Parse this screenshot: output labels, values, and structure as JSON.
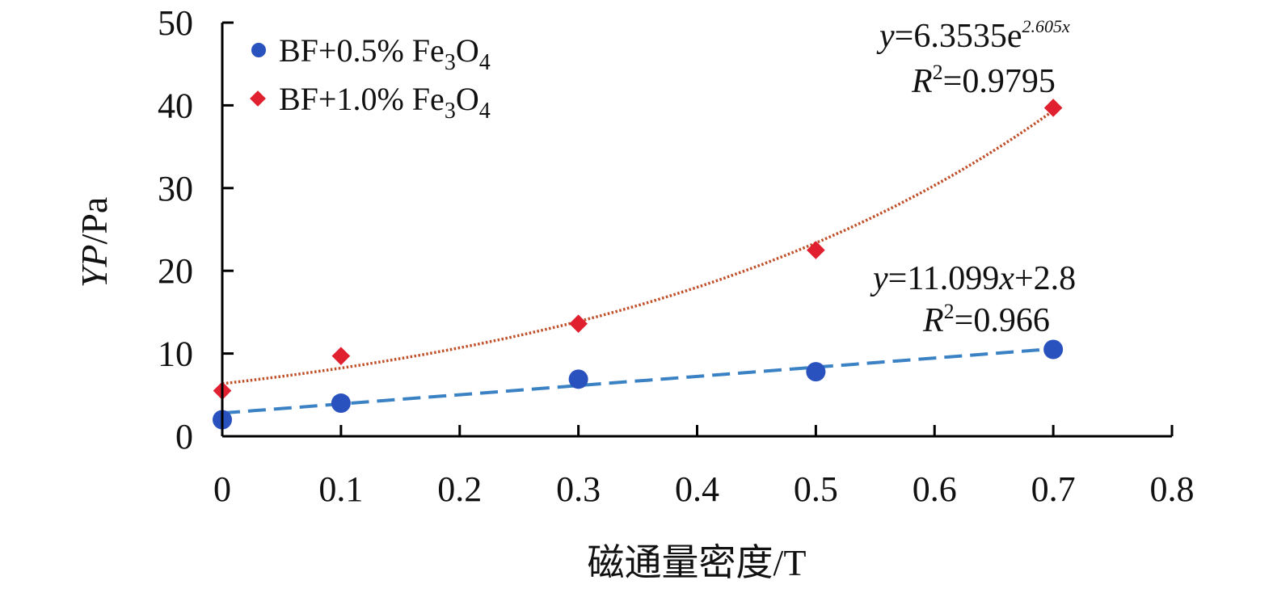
{
  "chart_data": {
    "type": "scatter",
    "xlabel": "磁通量密度/T",
    "ylabel": {
      "italic": "YP",
      "rest": "/Pa"
    },
    "xlim": [
      0,
      0.8
    ],
    "ylim": [
      0,
      50
    ],
    "x_ticks": [
      "0",
      "0.1",
      "0.2",
      "0.3",
      "0.4",
      "0.5",
      "0.6",
      "0.7",
      "0.8"
    ],
    "y_ticks": [
      "0",
      "10",
      "20",
      "30",
      "40",
      "50"
    ],
    "grid": false,
    "legend_position": "top-left",
    "series": [
      {
        "id": "s05",
        "legend": {
          "prefix": "BF+0.5% Fe",
          "sub1": "3",
          "mid": "O",
          "sub2": "4"
        },
        "color": "#2a52be",
        "marker": "circle",
        "x": [
          0,
          0.1,
          0.3,
          0.5,
          0.7
        ],
        "y": [
          2.0,
          4.0,
          6.9,
          7.8,
          10.5
        ],
        "trendline": {
          "type": "linear",
          "slope": 11.099,
          "intercept": 2.8,
          "color": "#3b82c4",
          "equation": {
            "y": "y",
            "eq": "=11.099",
            "x": "x",
            "tail": "+2.8"
          },
          "r2": {
            "R": "R",
            "two": "2",
            "value": "=0.966"
          }
        }
      },
      {
        "id": "s10",
        "legend": {
          "prefix": "BF+1.0% Fe",
          "sub1": "3",
          "mid": "O",
          "sub2": "4"
        },
        "color": "#e0202f",
        "marker": "diamond",
        "x": [
          0,
          0.1,
          0.3,
          0.5,
          0.7
        ],
        "y": [
          5.5,
          9.7,
          13.6,
          22.5,
          39.7
        ],
        "trendline": {
          "type": "exponential",
          "a": 6.3535,
          "b": 2.605,
          "color": "#c0502a",
          "equation": {
            "y": "y",
            "eq": "=6.3535e",
            "exp": "2.605",
            "x": "x"
          },
          "r2": {
            "R": "R",
            "two": "2",
            "value": "=0.9795"
          }
        }
      }
    ]
  }
}
